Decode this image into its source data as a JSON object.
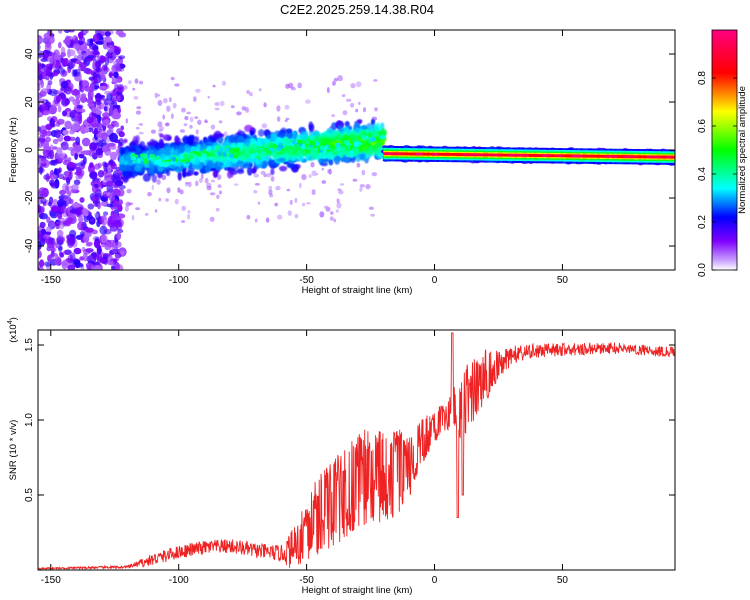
{
  "title": "C2E2.2025.259.14.38.R04",
  "chart_data": [
    {
      "type": "heatmap",
      "name": "spectrogram",
      "xlabel": "Height of straight line (km)",
      "ylabel": "Frequency (Hz)",
      "xlim": [
        -155,
        94
      ],
      "ylim": [
        -50,
        50
      ],
      "xticks": [
        -150,
        -100,
        -50,
        0,
        50
      ],
      "yticks": [
        -40,
        -20,
        0,
        20,
        40
      ],
      "tick_labels_x": [
        "-150",
        "-100",
        "-50",
        "0",
        "50"
      ],
      "tick_labels_y": [
        "-40",
        "-20",
        "0",
        "20",
        "40"
      ],
      "colorbar": {
        "label": "Normalized spectral amplitude",
        "range": [
          0,
          1
        ],
        "ticks": [
          0.0,
          0.2,
          0.4,
          0.6,
          0.8
        ],
        "tick_labels": [
          "0.0",
          "0.2",
          "0.4",
          "0.6",
          "0.8"
        ],
        "colors": [
          "#ffffff",
          "#c8a0ff",
          "#8000ff",
          "#0000ff",
          "#00ffff",
          "#00ff00",
          "#ffff00",
          "#ff0000",
          "#ff0080"
        ]
      },
      "regions": [
        {
          "x": [
            -155,
            -122
          ],
          "freq_center": 0,
          "freq_spread": 50,
          "amplitude": 0.15,
          "desc": "noise"
        },
        {
          "x": [
            -122,
            -20
          ],
          "freq_center": [
            -5,
            4
          ],
          "freq_spread": 10,
          "amplitude": 0.35
        },
        {
          "x": [
            -20,
            94
          ],
          "freq_center": [
            -1.5,
            -3
          ],
          "freq_spread": 2,
          "amplitude": 0.95
        }
      ]
    },
    {
      "type": "line",
      "name": "snr",
      "xlabel": "Height of straight line (km)",
      "ylabel": "SNR (10 * v/v)",
      "y_multiplier": "(x10",
      "y_multiplier_exp": "4",
      "y_multiplier_close": ")",
      "xlim": [
        -155,
        94
      ],
      "ylim": [
        0,
        16000
      ],
      "xticks": [
        -150,
        -100,
        -50,
        0,
        50
      ],
      "yticks": [
        5000,
        10000,
        15000
      ],
      "tick_labels_x": [
        "-150",
        "-100",
        "-50",
        "0",
        "50"
      ],
      "tick_labels_y": [
        "0.5",
        "1.0",
        "1.5"
      ],
      "series": [
        {
          "name": "SNR",
          "color": "#ee2222",
          "anchors_x": [
            -155,
            -120,
            -110,
            -100,
            -90,
            -80,
            -70,
            -60,
            -55,
            -50,
            -45,
            -40,
            -35,
            -30,
            -25,
            -20,
            -15,
            -10,
            -5,
            0,
            5,
            8,
            10,
            12,
            15,
            20,
            25,
            30,
            40,
            50,
            60,
            70,
            80,
            94
          ],
          "anchors_y": [
            100,
            200,
            700,
            1200,
            1500,
            1600,
            1300,
            1100,
            1400,
            2600,
            3800,
            4400,
            5200,
            5900,
            6400,
            6200,
            6400,
            7000,
            8500,
            9700,
            10300,
            10800,
            11000,
            11300,
            12000,
            12900,
            13700,
            14300,
            14600,
            14700,
            14750,
            14800,
            14700,
            14500
          ],
          "noise_amp_x": [
            -155,
            -120,
            -110,
            -60,
            -55,
            -45,
            -30,
            -15,
            -5,
            5,
            10,
            20,
            25,
            35,
            50,
            94
          ],
          "noise_amp_y": [
            80,
            150,
            700,
            900,
            2500,
            4500,
            5500,
            5000,
            2500,
            1500,
            4000,
            3000,
            1500,
            900,
            700,
            600
          ],
          "dips": [
            {
              "x": 9,
              "y": 3500
            },
            {
              "x": 11,
              "y": 5000
            },
            {
              "x": 7,
              "y": 15800
            }
          ]
        }
      ]
    }
  ]
}
